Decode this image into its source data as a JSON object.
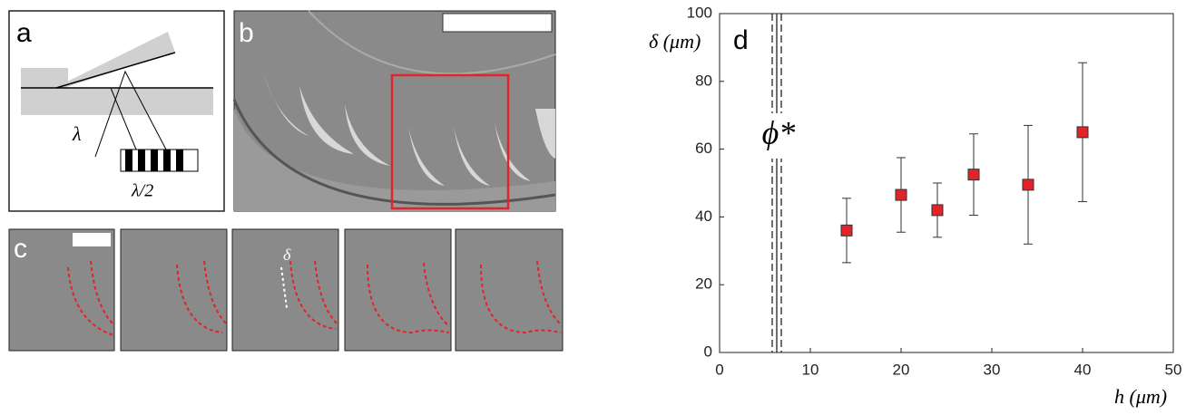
{
  "panels": {
    "a": {
      "label": "a",
      "wavelength": "λ",
      "half_wavelength": "λ/2"
    },
    "b": {
      "label": "b"
    },
    "c": {
      "label": "c",
      "delta": "δ"
    }
  },
  "chart_data": {
    "type": "scatter",
    "panel_label": "d",
    "xlabel": "h (μm)",
    "ylabel": "δ (μm)",
    "annotation": "ϕ*",
    "x": [
      14,
      20,
      24,
      28,
      34,
      40
    ],
    "series": [
      {
        "color": "#e0242a",
        "values": [
          36,
          46.5,
          42,
          52.5,
          49.5,
          65
        ],
        "yerr": [
          9.5,
          11,
          8,
          12,
          17.5,
          20.5
        ]
      }
    ],
    "vlines": [
      {
        "x": 6.3,
        "style": "solid"
      },
      {
        "x": 5.8,
        "style": "dashed"
      },
      {
        "x": 6.8,
        "style": "dashed"
      }
    ],
    "xlim": [
      0,
      50
    ],
    "xticks": [
      0,
      10,
      20,
      30,
      40,
      50
    ],
    "ylim": [
      0,
      100
    ],
    "yticks": [
      0,
      20,
      40,
      60,
      80,
      100
    ]
  }
}
